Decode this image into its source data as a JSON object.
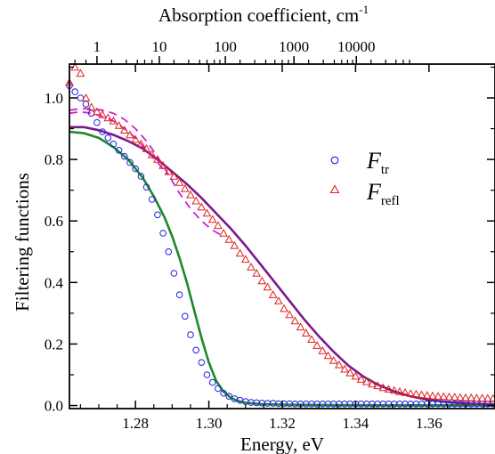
{
  "chart_data": {
    "type": "scatter",
    "xlabel": "Energy, eV",
    "ylabel": "Filtering functions",
    "top_xlabel": "Absorption coefficient, cm",
    "top_xlabel_sup": "-1",
    "xlim": [
      1.262,
      1.378
    ],
    "ylim": [
      -0.01,
      1.11
    ],
    "x_ticks": [
      1.28,
      1.3,
      1.32,
      1.34,
      1.36
    ],
    "x_tick_labels": [
      "1.28",
      "1.30",
      "1.32",
      "1.34",
      "1.36"
    ],
    "y_ticks": [
      0.0,
      0.2,
      0.4,
      0.6,
      0.8,
      1.0
    ],
    "y_tick_labels": [
      "0.0",
      "0.2",
      "0.4",
      "0.6",
      "0.8",
      "1.0"
    ],
    "top_ticks": [
      {
        "label": "1",
        "energy": 1.2695
      },
      {
        "label": "10",
        "energy": 1.2865
      },
      {
        "label": "100",
        "energy": 1.3045
      },
      {
        "label": "1000",
        "energy": 1.3232
      },
      {
        "label": "10000",
        "energy": 1.3402
      }
    ],
    "top_minor_tick_energies": [
      1.2595,
      1.2635,
      1.2665,
      1.2735,
      1.2775,
      1.2805,
      1.2825,
      1.2845,
      1.2905,
      1.2945,
      1.2975,
      1.2995,
      1.3015,
      1.303,
      1.3085,
      1.3125,
      1.3155,
      1.318,
      1.32,
      1.3217,
      1.3272,
      1.3312,
      1.3342,
      1.3362,
      1.3378,
      1.3392,
      1.3442,
      1.3482,
      1.351,
      1.353,
      1.3547
    ],
    "legend": [
      {
        "symbol": "circle",
        "color": "#1f1fe0",
        "label": "F",
        "subscript": "tr"
      },
      {
        "symbol": "triangle",
        "color": "#e02020",
        "label": "F",
        "subscript": "refl"
      }
    ],
    "colors": {
      "tr_markers": "#1f1fe0",
      "refl_markers": "#e02020",
      "green_curve": "#1a8a2a",
      "purple_curve": "#7a1a8a",
      "magenta_dashed": "#d020d0"
    },
    "series": [
      {
        "name": "F tr",
        "kind": "markers-circle",
        "color": "#1f1fe0",
        "x": [
          1.262,
          1.2635,
          1.265,
          1.2665,
          1.268,
          1.2695,
          1.271,
          1.2725,
          1.274,
          1.2755,
          1.277,
          1.2785,
          1.28,
          1.2815,
          1.283,
          1.2845,
          1.286,
          1.2875,
          1.289,
          1.2905,
          1.292,
          1.2935,
          1.295,
          1.2965,
          1.298,
          1.2995,
          1.301,
          1.3025,
          1.304,
          1.3055,
          1.307,
          1.3085,
          1.31,
          1.3115,
          1.313,
          1.3145,
          1.316,
          1.3175,
          1.319,
          1.3205,
          1.322,
          1.3235,
          1.325,
          1.3265,
          1.328,
          1.3295,
          1.331,
          1.3325,
          1.334,
          1.3355,
          1.337,
          1.3385,
          1.34,
          1.3415,
          1.343,
          1.3445,
          1.346,
          1.3475,
          1.349,
          1.3505,
          1.352,
          1.3535,
          1.355,
          1.3565,
          1.358,
          1.3595,
          1.361,
          1.3625,
          1.364,
          1.3655,
          1.367,
          1.3685,
          1.37,
          1.3715,
          1.373,
          1.3745,
          1.376,
          1.3775
        ],
        "y": [
          1.04,
          1.02,
          1.0,
          0.98,
          0.95,
          0.92,
          0.89,
          0.87,
          0.85,
          0.83,
          0.81,
          0.79,
          0.77,
          0.745,
          0.71,
          0.67,
          0.62,
          0.56,
          0.5,
          0.43,
          0.36,
          0.29,
          0.23,
          0.18,
          0.14,
          0.1,
          0.075,
          0.055,
          0.04,
          0.03,
          0.022,
          0.017,
          0.013,
          0.01,
          0.009,
          0.008,
          0.007,
          0.007,
          0.006,
          0.006,
          0.006,
          0.005,
          0.005,
          0.005,
          0.005,
          0.005,
          0.005,
          0.005,
          0.005,
          0.005,
          0.005,
          0.005,
          0.005,
          0.005,
          0.005,
          0.005,
          0.005,
          0.005,
          0.005,
          0.005,
          0.005,
          0.005,
          0.005,
          0.005,
          0.005,
          0.005,
          0.005,
          0.005,
          0.005,
          0.005,
          0.005,
          0.005,
          0.005,
          0.005,
          0.005,
          0.005,
          0.005,
          0.005
        ]
      },
      {
        "name": "F refl",
        "kind": "markers-triangle",
        "color": "#e02020",
        "x": [
          1.262,
          1.2635,
          1.265,
          1.2665,
          1.268,
          1.2695,
          1.271,
          1.2725,
          1.274,
          1.2755,
          1.277,
          1.2785,
          1.28,
          1.2815,
          1.283,
          1.2845,
          1.286,
          1.2875,
          1.289,
          1.2905,
          1.292,
          1.2935,
          1.295,
          1.2965,
          1.298,
          1.2995,
          1.301,
          1.3025,
          1.304,
          1.3055,
          1.307,
          1.3085,
          1.31,
          1.3115,
          1.313,
          1.3145,
          1.316,
          1.3175,
          1.319,
          1.3205,
          1.322,
          1.3235,
          1.325,
          1.3265,
          1.328,
          1.3295,
          1.331,
          1.3325,
          1.334,
          1.3355,
          1.337,
          1.3385,
          1.34,
          1.3415,
          1.343,
          1.3445,
          1.346,
          1.3475,
          1.349,
          1.3505,
          1.352,
          1.3535,
          1.355,
          1.3565,
          1.358,
          1.3595,
          1.361,
          1.3625,
          1.364,
          1.3655,
          1.367,
          1.3685,
          1.37,
          1.3715,
          1.373,
          1.3745,
          1.376,
          1.3775
        ],
        "y": [
          1.05,
          1.1,
          1.08,
          1.0,
          0.97,
          0.955,
          0.945,
          0.935,
          0.925,
          0.91,
          0.895,
          0.88,
          0.865,
          0.85,
          0.835,
          0.815,
          0.8,
          0.78,
          0.76,
          0.745,
          0.725,
          0.705,
          0.685,
          0.665,
          0.645,
          0.625,
          0.605,
          0.585,
          0.56,
          0.54,
          0.52,
          0.495,
          0.475,
          0.45,
          0.43,
          0.405,
          0.385,
          0.36,
          0.34,
          0.315,
          0.295,
          0.275,
          0.255,
          0.235,
          0.215,
          0.195,
          0.178,
          0.162,
          0.146,
          0.132,
          0.118,
          0.106,
          0.095,
          0.085,
          0.077,
          0.07,
          0.064,
          0.058,
          0.053,
          0.049,
          0.045,
          0.042,
          0.039,
          0.037,
          0.035,
          0.033,
          0.031,
          0.03,
          0.029,
          0.028,
          0.027,
          0.026,
          0.025,
          0.025,
          0.024,
          0.024,
          0.023,
          0.023
        ]
      },
      {
        "kind": "line",
        "color": "#1a8a2a",
        "x": [
          1.262,
          1.266,
          1.27,
          1.274,
          1.278,
          1.282,
          1.285,
          1.288,
          1.29,
          1.292,
          1.294,
          1.296,
          1.298,
          1.3,
          1.302,
          1.304,
          1.306,
          1.308,
          1.31,
          1.314,
          1.32,
          1.33,
          1.345,
          1.36,
          1.378
        ],
        "y": [
          0.89,
          0.885,
          0.87,
          0.84,
          0.8,
          0.74,
          0.68,
          0.61,
          0.55,
          0.48,
          0.4,
          0.31,
          0.22,
          0.14,
          0.08,
          0.045,
          0.025,
          0.015,
          0.009,
          0.005,
          0.003,
          0.002,
          0.001,
          0.001,
          0.001
        ]
      },
      {
        "kind": "line",
        "color": "#7a1a8a",
        "x": [
          1.262,
          1.266,
          1.27,
          1.274,
          1.278,
          1.282,
          1.286,
          1.29,
          1.294,
          1.298,
          1.302,
          1.306,
          1.31,
          1.314,
          1.318,
          1.322,
          1.326,
          1.33,
          1.334,
          1.338,
          1.342,
          1.346,
          1.35,
          1.355,
          1.36,
          1.366,
          1.372,
          1.378
        ],
        "y": [
          0.905,
          0.905,
          0.895,
          0.88,
          0.86,
          0.835,
          0.8,
          0.76,
          0.72,
          0.675,
          0.625,
          0.575,
          0.52,
          0.46,
          0.4,
          0.34,
          0.28,
          0.225,
          0.175,
          0.13,
          0.095,
          0.068,
          0.048,
          0.03,
          0.018,
          0.01,
          0.006,
          0.004
        ]
      },
      {
        "kind": "dashed-line",
        "color": "#d020d0",
        "x": [
          1.262,
          1.265,
          1.268,
          1.271,
          1.274,
          1.277,
          1.28,
          1.283,
          1.286,
          1.289,
          1.292,
          1.295,
          1.298,
          1.301,
          1.304
        ],
        "y": [
          0.96,
          0.965,
          0.965,
          0.96,
          0.95,
          0.93,
          0.9,
          0.86,
          0.81,
          0.75,
          0.69,
          0.64,
          0.6,
          0.57,
          0.55
        ]
      },
      {
        "kind": "dashed-line",
        "color": "#d020d0",
        "x": [
          1.262,
          1.265,
          1.268,
          1.271,
          1.274,
          1.277,
          1.28,
          1.283,
          1.286,
          1.289
        ],
        "y": [
          0.95,
          0.955,
          0.95,
          0.94,
          0.925,
          0.9,
          0.87,
          0.83,
          0.79,
          0.75
        ]
      }
    ]
  }
}
